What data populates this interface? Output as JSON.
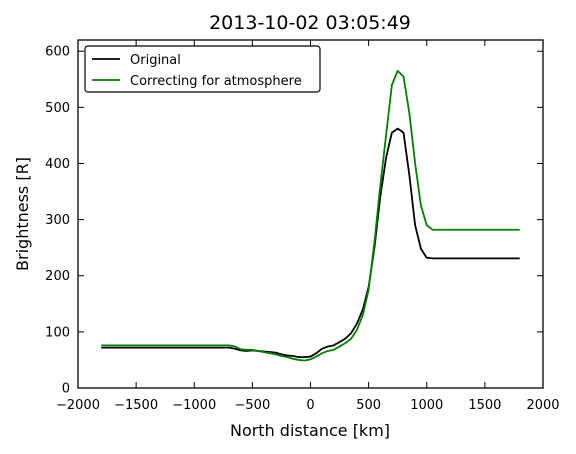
{
  "chart_data": {
    "type": "line",
    "title": "2013-10-02 03:05:49",
    "xlabel": "North distance [km]",
    "ylabel": "Brightness [R]",
    "xlim": [
      -2000,
      2000
    ],
    "ylim": [
      0,
      620
    ],
    "xticks": [
      -2000,
      -1500,
      -1000,
      -500,
      0,
      500,
      1000,
      1500,
      2000
    ],
    "yticks": [
      0,
      100,
      200,
      300,
      400,
      500,
      600
    ],
    "xtick_labels": [
      "−2000",
      "−1500",
      "−1000",
      "−500",
      "0",
      "500",
      "1000",
      "1500",
      "2000"
    ],
    "ytick_labels": [
      "0",
      "100",
      "200",
      "300",
      "400",
      "500",
      "600"
    ],
    "grid": false,
    "legend_position": "top-left",
    "series": [
      {
        "name": "Original",
        "color": "#000000",
        "x": [
          -1800,
          -1400,
          -1000,
          -700,
          -650,
          -600,
          -550,
          -500,
          -450,
          -400,
          -350,
          -300,
          -250,
          -200,
          -150,
          -100,
          -50,
          0,
          50,
          100,
          150,
          200,
          250,
          300,
          350,
          400,
          450,
          500,
          550,
          600,
          650,
          700,
          750,
          800,
          850,
          900,
          950,
          1000,
          1050,
          1100,
          1200,
          1500,
          1800
        ],
        "y": [
          72,
          72,
          72,
          72,
          70,
          67,
          66,
          67,
          66,
          65,
          64,
          63,
          60,
          58,
          57,
          55,
          55,
          56,
          62,
          70,
          74,
          76,
          82,
          88,
          98,
          115,
          140,
          180,
          250,
          340,
          410,
          455,
          462,
          455,
          380,
          290,
          248,
          232,
          231,
          231,
          231,
          231,
          231
        ]
      },
      {
        "name": "Correcting for atmosphere",
        "color": "#008000",
        "x": [
          -1800,
          -1400,
          -1000,
          -700,
          -650,
          -600,
          -550,
          -500,
          -450,
          -400,
          -350,
          -300,
          -250,
          -200,
          -150,
          -100,
          -50,
          0,
          50,
          100,
          150,
          200,
          250,
          300,
          350,
          400,
          450,
          500,
          550,
          600,
          650,
          700,
          750,
          800,
          850,
          900,
          950,
          1000,
          1050,
          1100,
          1200,
          1500,
          1800
        ],
        "y": [
          76,
          76,
          76,
          76,
          74,
          69,
          68,
          68,
          66,
          64,
          62,
          60,
          57,
          55,
          52,
          50,
          49,
          51,
          56,
          62,
          66,
          68,
          74,
          80,
          88,
          104,
          130,
          175,
          260,
          360,
          450,
          540,
          565,
          555,
          490,
          400,
          325,
          290,
          282,
          282,
          282,
          282,
          282
        ]
      }
    ]
  }
}
